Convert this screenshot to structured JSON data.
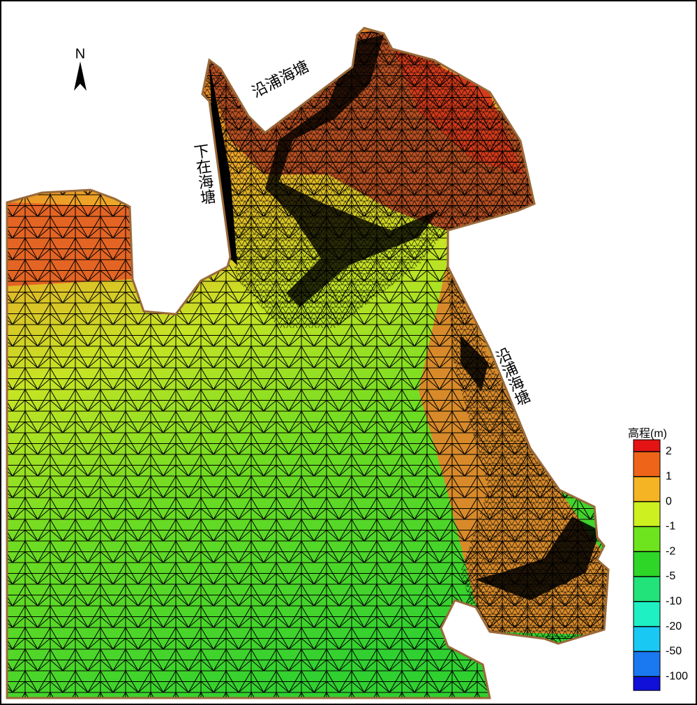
{
  "north_label": "N",
  "annotations": [
    "沿浦海塘",
    "下在海塘",
    "沿浦海塘"
  ],
  "legend": {
    "title": "高程(m)",
    "labels": [
      2,
      1,
      0,
      -1,
      -2,
      -5,
      -10,
      -20,
      -50,
      -100
    ],
    "colors": [
      "#e41414",
      "#ee6418",
      "#f5b424",
      "#cdf020",
      "#6ee41e",
      "#2ed628",
      "#22e27a",
      "#1ef0c4",
      "#1ac8f4",
      "#1a78f0",
      "#1010d8"
    ]
  }
}
